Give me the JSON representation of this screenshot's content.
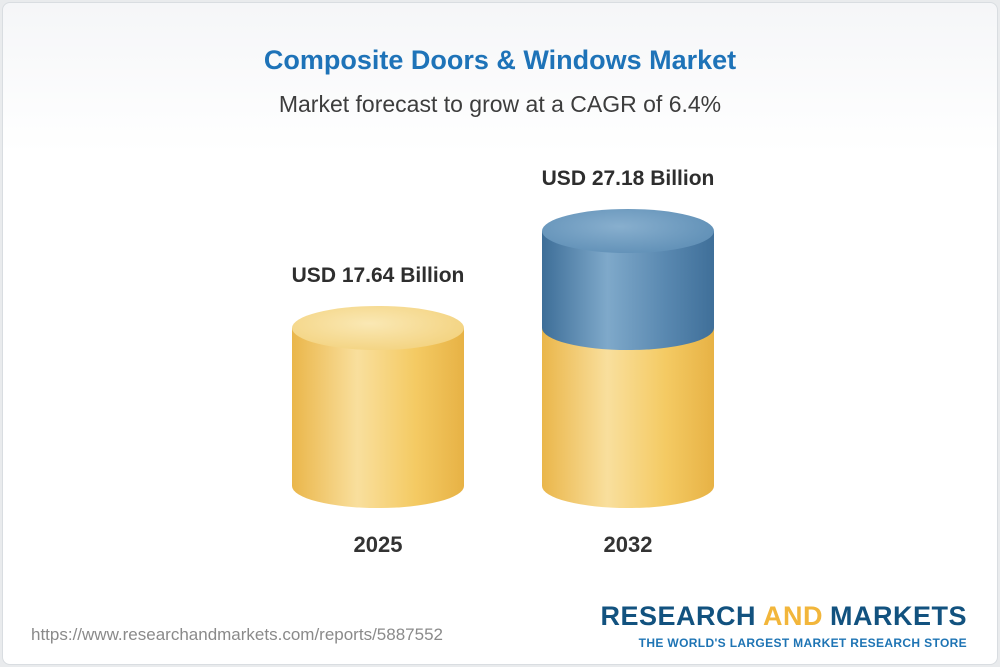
{
  "chart_data": {
    "type": "bar",
    "style": "3d-cylinder-infographic",
    "title": "Composite Doors & Windows Market",
    "subtitle": "Market forecast to grow at a CAGR of 6.4%",
    "cagr_percent": 6.4,
    "unit": "USD Billion",
    "categories": [
      "2025",
      "2032"
    ],
    "values": [
      17.64,
      27.18
    ],
    "legend": "none",
    "axes": "none",
    "bars": [
      {
        "category": "2025",
        "label": "USD 17.64 Billion",
        "total": 17.64,
        "segments": [
          {
            "name": "base",
            "value": 17.64,
            "color": "#f2c25c"
          }
        ]
      },
      {
        "category": "2032",
        "label": "USD 27.18 Billion",
        "total": 27.18,
        "segments": [
          {
            "name": "base",
            "value": 17.64,
            "color": "#f2c25c"
          },
          {
            "name": "growth",
            "value": 9.54,
            "color": "#4e7fa8"
          }
        ]
      }
    ]
  },
  "colors": {
    "title_blue": "#1e73b8",
    "subtitle_gray": "#3d3d3d",
    "cylinder_yellow": "#f2c25c",
    "cylinder_yellow_top": "#f6dd9b",
    "cylinder_blue": "#4e7fa8",
    "cylinder_blue_top": "#6f9cc1",
    "logo_blue": "#12527f",
    "logo_yellow": "#f2b63b",
    "url_gray": "#8a8a8a"
  },
  "footer": {
    "url": "https://www.researchandmarkets.com/reports/5887552",
    "logo": {
      "part1": "RESEARCH",
      "part2": "AND",
      "part3": "MARKETS",
      "tagline": "THE WORLD'S LARGEST MARKET RESEARCH STORE"
    }
  }
}
